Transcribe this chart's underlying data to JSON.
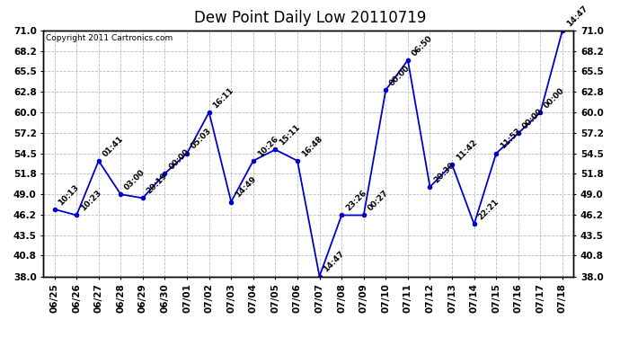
{
  "title": "Dew Point Daily Low 20110719",
  "copyright": "Copyright 2011 Cartronics.com",
  "x_labels": [
    "06/25",
    "06/26",
    "06/27",
    "06/28",
    "06/29",
    "06/30",
    "07/01",
    "07/02",
    "07/03",
    "07/04",
    "07/05",
    "07/06",
    "07/07",
    "07/08",
    "07/09",
    "07/10",
    "07/11",
    "07/12",
    "07/13",
    "07/14",
    "07/15",
    "07/16",
    "07/17",
    "07/18"
  ],
  "y_values": [
    47.0,
    46.2,
    53.5,
    49.0,
    48.5,
    51.8,
    54.5,
    60.0,
    48.0,
    53.5,
    55.0,
    53.5,
    38.0,
    46.2,
    46.2,
    63.0,
    67.0,
    50.0,
    53.0,
    45.0,
    54.5,
    57.2,
    60.0,
    71.0
  ],
  "annotations": [
    "10:13",
    "10:23",
    "01:41",
    "03:00",
    "20:19",
    "00:00",
    "05:03",
    "16:11",
    "14:49",
    "10:26",
    "15:11",
    "16:48",
    "14:47",
    "23:26",
    "00:27",
    "00:00",
    "06:50",
    "20:30",
    "11:42",
    "22:21",
    "11:53",
    "00:00",
    "00:00",
    "14:47"
  ],
  "ylim": [
    38.0,
    71.0
  ],
  "yticks": [
    38.0,
    40.8,
    43.5,
    46.2,
    49.0,
    51.8,
    54.5,
    57.2,
    60.0,
    62.8,
    65.5,
    68.2,
    71.0
  ],
  "line_color": "#0000cc",
  "marker_color": "#0000cc",
  "background_color": "#ffffff",
  "grid_color": "#bbbbbb",
  "title_fontsize": 12,
  "annotation_fontsize": 6.5,
  "copyright_fontsize": 6.5,
  "tick_fontsize": 7.5
}
